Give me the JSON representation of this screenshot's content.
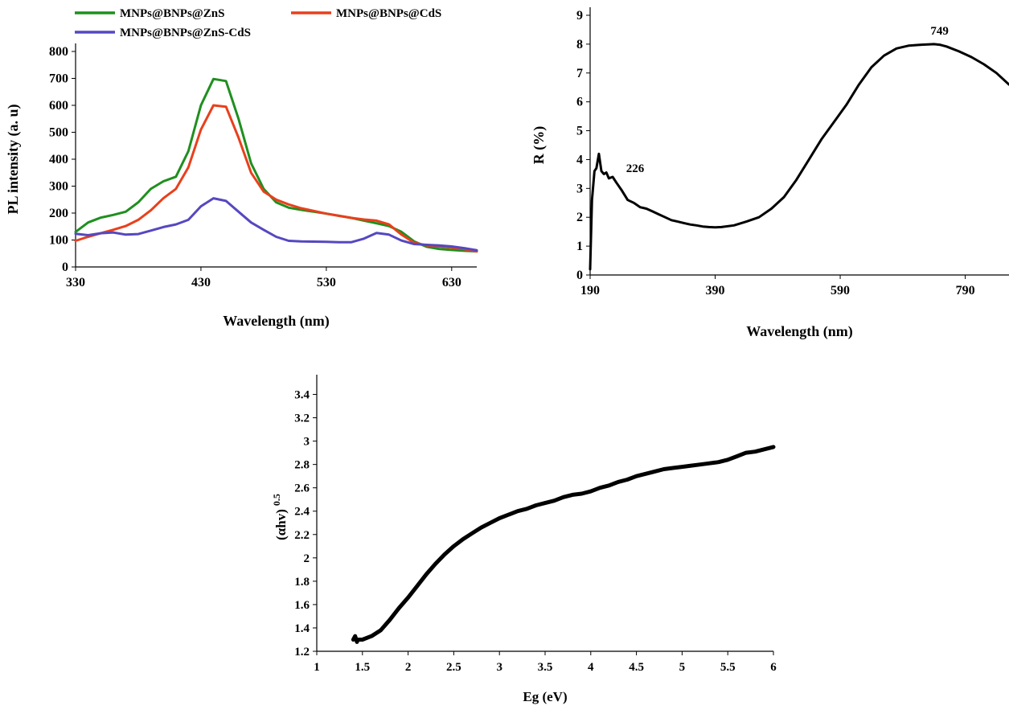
{
  "chart_data": [
    {
      "type": "line",
      "title": "",
      "xlabel": "Wavelength (nm)",
      "ylabel": "PL intensity (a. u)",
      "xlim": [
        330,
        650
      ],
      "ylim": [
        0,
        800
      ],
      "xticks": [
        330,
        430,
        530,
        630
      ],
      "yticks": [
        0,
        100,
        200,
        300,
        400,
        500,
        600,
        700,
        800
      ],
      "grid": false,
      "legend_position": "top",
      "series": [
        {
          "name": "MNPs@BNPs@ZnS",
          "color": "#1f8f1f",
          "x": [
            330,
            340,
            350,
            360,
            370,
            380,
            390,
            400,
            410,
            420,
            430,
            440,
            450,
            460,
            470,
            480,
            490,
            500,
            510,
            520,
            530,
            540,
            550,
            560,
            570,
            580,
            590,
            600,
            610,
            620,
            630,
            640,
            650
          ],
          "y": [
            130,
            165,
            183,
            193,
            205,
            240,
            290,
            318,
            335,
            430,
            600,
            698,
            690,
            550,
            385,
            290,
            240,
            220,
            212,
            205,
            198,
            190,
            182,
            172,
            162,
            152,
            130,
            95,
            75,
            67,
            63,
            60,
            58
          ]
        },
        {
          "name": "MNPs@BNPs@CdS",
          "color": "#e8401c",
          "x": [
            330,
            340,
            350,
            360,
            370,
            380,
            390,
            400,
            410,
            420,
            430,
            440,
            450,
            460,
            470,
            480,
            490,
            500,
            510,
            520,
            530,
            540,
            550,
            560,
            570,
            580,
            590,
            600,
            610,
            620,
            630,
            640,
            650
          ],
          "y": [
            97,
            112,
            125,
            138,
            152,
            175,
            210,
            255,
            290,
            370,
            510,
            600,
            595,
            480,
            350,
            280,
            250,
            232,
            218,
            208,
            198,
            190,
            182,
            176,
            172,
            158,
            120,
            90,
            80,
            76,
            72,
            66,
            58
          ]
        },
        {
          "name": "MNPs@BNPs@ZnS-CdS",
          "color": "#5548c0",
          "x": [
            330,
            340,
            350,
            360,
            370,
            380,
            390,
            400,
            410,
            420,
            430,
            440,
            450,
            460,
            470,
            480,
            490,
            500,
            510,
            520,
            530,
            540,
            550,
            560,
            570,
            580,
            590,
            600,
            610,
            620,
            630,
            640,
            650
          ],
          "y": [
            123,
            118,
            125,
            128,
            120,
            122,
            135,
            148,
            158,
            175,
            225,
            255,
            245,
            205,
            165,
            138,
            112,
            97,
            95,
            94,
            93,
            92,
            92,
            105,
            126,
            120,
            98,
            85,
            82,
            80,
            76,
            70,
            62
          ]
        }
      ]
    },
    {
      "type": "line",
      "title": "",
      "xlabel": "Wavelength (nm)",
      "ylabel": "R (%)",
      "xlim": [
        190,
        860
      ],
      "ylim": [
        0,
        9
      ],
      "xticks": [
        190,
        390,
        590,
        790
      ],
      "yticks": [
        0,
        1,
        2,
        3,
        4,
        5,
        6,
        7,
        8,
        9
      ],
      "grid": false,
      "annotations": [
        {
          "text": "226",
          "x": 226,
          "y": 3.4
        },
        {
          "text": "749",
          "x": 749,
          "y": 8.0
        }
      ],
      "series": [
        {
          "color": "#000000",
          "x": [
            190,
            193,
            197,
            200,
            204,
            208,
            212,
            216,
            220,
            226,
            232,
            240,
            250,
            260,
            270,
            280,
            290,
            300,
            310,
            320,
            330,
            340,
            350,
            360,
            370,
            380,
            390,
            400,
            420,
            440,
            460,
            480,
            500,
            520,
            540,
            560,
            580,
            600,
            620,
            640,
            660,
            680,
            700,
            720,
            740,
            749,
            760,
            780,
            800,
            820,
            840,
            860
          ],
          "y": [
            0.2,
            2.6,
            3.6,
            3.7,
            4.2,
            3.6,
            3.5,
            3.55,
            3.35,
            3.4,
            3.2,
            2.95,
            2.6,
            2.5,
            2.35,
            2.3,
            2.2,
            2.1,
            2.0,
            1.9,
            1.85,
            1.8,
            1.75,
            1.72,
            1.68,
            1.66,
            1.65,
            1.66,
            1.72,
            1.85,
            2.0,
            2.3,
            2.7,
            3.3,
            4.0,
            4.7,
            5.3,
            5.9,
            6.6,
            7.2,
            7.6,
            7.85,
            7.95,
            7.98,
            8.0,
            7.98,
            7.92,
            7.75,
            7.55,
            7.3,
            7.0,
            6.6
          ]
        }
      ]
    },
    {
      "type": "line",
      "title": "",
      "xlabel": "Eg (eV)",
      "ylabel": "(αhv)",
      "ylabel_sup": "0.5",
      "xlim": [
        1,
        6
      ],
      "ylim": [
        1.2,
        3.5
      ],
      "xticks": [
        1,
        1.5,
        2,
        2.5,
        3,
        3.5,
        4,
        4.5,
        5,
        5.5,
        6
      ],
      "yticks": [
        1.2,
        1.4,
        1.6,
        1.8,
        2,
        2.2,
        2.4,
        2.6,
        2.8,
        3,
        3.2,
        3.4
      ],
      "grid": false,
      "series": [
        {
          "color": "#000000",
          "x": [
            1.4,
            1.42,
            1.44,
            1.45,
            1.5,
            1.6,
            1.7,
            1.8,
            1.9,
            2.0,
            2.1,
            2.2,
            2.3,
            2.4,
            2.5,
            2.6,
            2.7,
            2.8,
            2.9,
            3.0,
            3.1,
            3.2,
            3.3,
            3.4,
            3.5,
            3.6,
            3.7,
            3.8,
            3.9,
            4.0,
            4.1,
            4.2,
            4.3,
            4.4,
            4.5,
            4.6,
            4.7,
            4.8,
            4.9,
            5.0,
            5.1,
            5.2,
            5.3,
            5.4,
            5.5,
            5.6,
            5.7,
            5.8,
            5.9,
            6.0
          ],
          "y": [
            1.3,
            1.33,
            1.28,
            1.3,
            1.3,
            1.33,
            1.38,
            1.47,
            1.57,
            1.66,
            1.76,
            1.86,
            1.95,
            2.03,
            2.1,
            2.16,
            2.21,
            2.26,
            2.3,
            2.34,
            2.37,
            2.4,
            2.42,
            2.45,
            2.47,
            2.49,
            2.52,
            2.54,
            2.55,
            2.57,
            2.6,
            2.62,
            2.65,
            2.67,
            2.7,
            2.72,
            2.74,
            2.76,
            2.77,
            2.78,
            2.79,
            2.8,
            2.81,
            2.82,
            2.84,
            2.87,
            2.9,
            2.91,
            2.93,
            2.95
          ]
        }
      ]
    }
  ]
}
